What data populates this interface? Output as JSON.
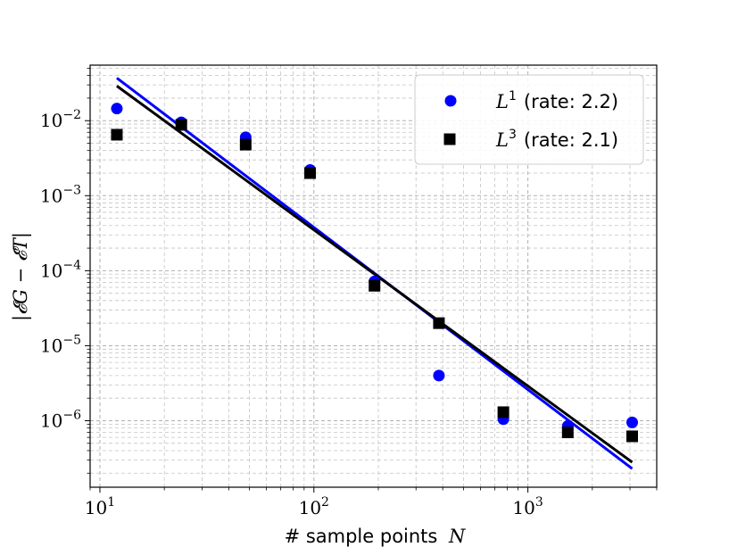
{
  "chart_data": {
    "type": "scatter",
    "title": "",
    "xscale": "log",
    "yscale": "log",
    "xlim": [
      9.0,
      4000
    ],
    "ylim": [
      1.3e-07,
      0.055
    ],
    "xlabel_text": "# sample points",
    "xlabel_var": "N",
    "ylabel": "|𝓔G − 𝓔T|",
    "x_ticks": [
      {
        "value": 10,
        "base": "10",
        "exp": "1"
      },
      {
        "value": 100,
        "base": "10",
        "exp": "2"
      },
      {
        "value": 1000,
        "base": "10",
        "exp": "3"
      }
    ],
    "y_ticks": [
      {
        "value": 0.01,
        "base": "10",
        "exp": "−2"
      },
      {
        "value": 0.001,
        "base": "10",
        "exp": "−3"
      },
      {
        "value": 0.0001,
        "base": "10",
        "exp": "−4"
      },
      {
        "value": 1e-05,
        "base": "10",
        "exp": "−5"
      },
      {
        "value": 1e-06,
        "base": "10",
        "exp": "−6"
      }
    ],
    "grid": true,
    "legend_position": "top-right",
    "series": [
      {
        "name": "L1",
        "legend_var": "L",
        "legend_sup": "1",
        "legend_rate": "(rate: 2.2)",
        "marker": "circle",
        "color": "#0000ff",
        "x": [
          12,
          24,
          48,
          96,
          192,
          384,
          768,
          1536,
          3072
        ],
        "y": [
          0.0145,
          0.0095,
          0.006,
          0.0022,
          7.2e-05,
          4e-06,
          1.05e-06,
          8.5e-07,
          9.5e-07
        ],
        "fit": {
          "x": [
            12,
            3072
          ],
          "y": [
            0.037,
            2.3e-07
          ]
        }
      },
      {
        "name": "L3",
        "legend_var": "L",
        "legend_sup": "3",
        "legend_rate": "(rate: 2.1)",
        "marker": "square",
        "color": "#000000",
        "x": [
          12,
          24,
          48,
          96,
          192,
          384,
          768,
          1536,
          3072
        ],
        "y": [
          0.0065,
          0.0088,
          0.0048,
          0.002,
          6.3e-05,
          2e-05,
          1.3e-06,
          7e-07,
          6.2e-07
        ],
        "fit": {
          "x": [
            12,
            3072
          ],
          "y": [
            0.029,
            2.8e-07
          ]
        }
      }
    ]
  }
}
